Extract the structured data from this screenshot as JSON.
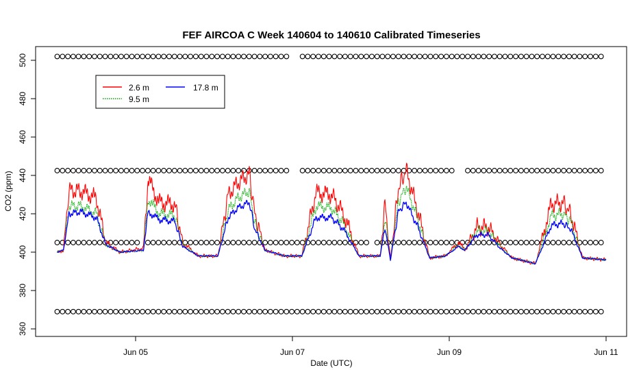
{
  "chart_data": {
    "type": "line",
    "title": "FEF AIRCOA C  Week 140604 to 140610  Calibrated Timeseries",
    "xlabel": "Date (UTC)",
    "ylabel": "CO2 (ppm)",
    "x_ticks": [
      {
        "day": 5,
        "label": "Jun 05"
      },
      {
        "day": 7,
        "label": "Jun 07"
      },
      {
        "day": 9,
        "label": "Jun 09"
      },
      {
        "day": 11,
        "label": "Jun 11"
      }
    ],
    "xlim_days": [
      3.87,
      11.15
    ],
    "ylim": [
      358,
      508
    ],
    "y_ticks": [
      360,
      380,
      400,
      420,
      440,
      460,
      480,
      500
    ],
    "grid": false,
    "legend_position": "top-left",
    "series": [
      {
        "name": "2.6 m",
        "color": "#ff0000",
        "style": "solid",
        "x": [
          4.0,
          4.08,
          4.15,
          4.3,
          4.5,
          4.62,
          4.8,
          5.1,
          5.16,
          5.3,
          5.5,
          5.6,
          5.8,
          6.05,
          6.18,
          6.3,
          6.45,
          6.52,
          6.65,
          6.9,
          7.12,
          7.3,
          7.5,
          7.65,
          7.85,
          8.12,
          8.18,
          8.25,
          8.35,
          8.45,
          8.6,
          8.75,
          8.95,
          9.12,
          9.2,
          9.35,
          9.5,
          9.65,
          9.8,
          10.1,
          10.3,
          10.45,
          10.55,
          10.7,
          11.0
        ],
        "y": [
          400,
          401,
          432,
          432,
          428,
          405,
          400,
          402,
          438,
          426,
          425,
          405,
          398,
          398,
          430,
          436,
          441,
          420,
          401,
          398,
          398,
          431,
          430,
          420,
          398,
          398,
          426,
          396,
          433,
          443,
          421,
          397,
          398,
          405,
          401,
          413,
          413,
          404,
          397,
          394,
          425,
          426,
          420,
          397,
          396
        ]
      },
      {
        "name": "9.5 m",
        "color": "#00aa00",
        "style": "dotted",
        "x": [
          4.0,
          4.08,
          4.15,
          4.3,
          4.5,
          4.62,
          4.8,
          5.1,
          5.16,
          5.3,
          5.5,
          5.6,
          5.8,
          6.05,
          6.18,
          6.3,
          6.45,
          6.52,
          6.65,
          6.9,
          7.12,
          7.3,
          7.5,
          7.65,
          7.85,
          8.12,
          8.18,
          8.25,
          8.35,
          8.45,
          8.6,
          8.75,
          8.95,
          9.12,
          9.2,
          9.35,
          9.5,
          9.65,
          9.8,
          10.1,
          10.3,
          10.45,
          10.55,
          10.7,
          11.0
        ],
        "y": [
          400,
          401,
          424,
          424,
          420,
          404,
          400,
          401,
          428,
          420,
          419,
          404,
          398,
          398,
          422,
          428,
          432,
          415,
          401,
          398,
          398,
          424,
          423,
          415,
          398,
          398,
          418,
          396,
          426,
          434,
          417,
          397,
          398,
          404,
          401,
          411,
          411,
          403,
          397,
          394,
          419,
          420,
          416,
          397,
          396
        ]
      },
      {
        "name": "17.8 m",
        "color": "#0000ff",
        "style": "solid",
        "x": [
          4.0,
          4.08,
          4.15,
          4.3,
          4.5,
          4.62,
          4.8,
          5.1,
          5.16,
          5.3,
          5.5,
          5.6,
          5.8,
          6.05,
          6.18,
          6.3,
          6.45,
          6.52,
          6.65,
          6.9,
          7.12,
          7.3,
          7.5,
          7.65,
          7.85,
          8.12,
          8.18,
          8.25,
          8.35,
          8.45,
          8.6,
          8.75,
          8.95,
          9.12,
          9.2,
          9.35,
          9.5,
          9.65,
          9.8,
          10.1,
          10.3,
          10.45,
          10.55,
          10.7,
          11.0
        ],
        "y": [
          400,
          401,
          420,
          421,
          418,
          404,
          400,
          401,
          421,
          417,
          416,
          403,
          398,
          398,
          418,
          423,
          426,
          412,
          401,
          398,
          398,
          418,
          418,
          412,
          398,
          398,
          413,
          396,
          421,
          426,
          413,
          397,
          398,
          403,
          401,
          409,
          409,
          402,
          397,
          394,
          414,
          415,
          412,
          397,
          396
        ]
      }
    ],
    "marker_rows": [
      {
        "y": 502,
        "gaps": [
          [
            6.97,
            7.07
          ]
        ]
      },
      {
        "y": 442.5,
        "gaps": [
          [
            6.97,
            7.07
          ],
          [
            9.07,
            9.17
          ]
        ]
      },
      {
        "y": 405,
        "gaps": [
          [
            5.02,
            5.12
          ],
          [
            7.97,
            8.07
          ]
        ]
      },
      {
        "y": 369,
        "gaps": []
      }
    ],
    "marker_x_range": [
      4.0,
      11.0
    ],
    "marker_step_days": 0.068,
    "marker_glyph": "o"
  },
  "colors": {
    "series_2_6m": "#ff0000",
    "series_9_5m": "#00aa00",
    "series_17_8m": "#0000ff",
    "axes": "#000000",
    "background": "#ffffff"
  }
}
